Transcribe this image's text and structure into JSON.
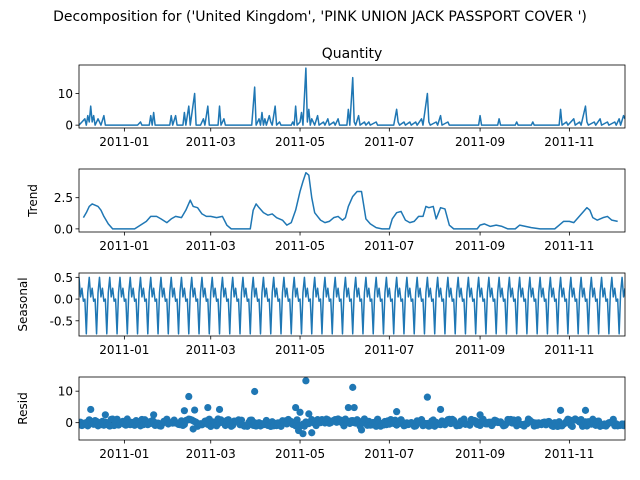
{
  "figure": {
    "suptitle": "Decomposition for ('United Kingdom', 'PINK UNION JACK  PASSPORT COVER ')"
  },
  "x_ticks": [
    "2011-01",
    "2011-03",
    "2011-05",
    "2011-07",
    "2011-09",
    "2011-11"
  ],
  "colors": {
    "series": "#1f77b4",
    "axis": "#000000",
    "background": "#ffffff"
  },
  "chart_data": [
    {
      "type": "line",
      "title": "Quantity",
      "ylabel": "",
      "x_range": [
        "2010-12-01",
        "2011-12-09"
      ],
      "ylim": [
        -0.9,
        19
      ],
      "yticks": [
        0,
        10
      ],
      "points": [
        [
          "2010-12-01",
          0
        ],
        [
          "2010-12-03",
          1
        ],
        [
          "2010-12-05",
          2
        ],
        [
          "2010-12-06",
          0
        ],
        [
          "2010-12-07",
          3
        ],
        [
          "2010-12-08",
          1
        ],
        [
          "2010-12-09",
          6
        ],
        [
          "2010-12-10",
          1
        ],
        [
          "2010-12-11",
          3
        ],
        [
          "2010-12-12",
          0
        ],
        [
          "2010-12-14",
          2
        ],
        [
          "2010-12-15",
          1
        ],
        [
          "2010-12-16",
          0
        ],
        [
          "2010-12-18",
          3
        ],
        [
          "2010-12-19",
          0
        ],
        [
          "2010-12-21",
          0
        ],
        [
          "2011-01-10",
          0
        ],
        [
          "2011-01-12",
          1
        ],
        [
          "2011-01-13",
          0
        ],
        [
          "2011-01-18",
          0
        ],
        [
          "2011-01-19",
          3
        ],
        [
          "2011-01-20",
          0
        ],
        [
          "2011-01-21",
          4
        ],
        [
          "2011-01-22",
          0
        ],
        [
          "2011-02-01",
          0
        ],
        [
          "2011-02-02",
          3
        ],
        [
          "2011-02-03",
          0
        ],
        [
          "2011-02-05",
          3
        ],
        [
          "2011-02-06",
          0
        ],
        [
          "2011-02-10",
          0
        ],
        [
          "2011-02-11",
          4
        ],
        [
          "2011-02-12",
          0
        ],
        [
          "2011-02-14",
          6
        ],
        [
          "2011-02-15",
          0
        ],
        [
          "2011-02-18",
          10
        ],
        [
          "2011-02-19",
          0
        ],
        [
          "2011-02-22",
          0
        ],
        [
          "2011-02-24",
          2
        ],
        [
          "2011-02-25",
          0
        ],
        [
          "2011-02-27",
          6
        ],
        [
          "2011-02-28",
          0
        ],
        [
          "2011-03-06",
          0
        ],
        [
          "2011-03-07",
          6
        ],
        [
          "2011-03-08",
          0
        ],
        [
          "2011-03-10",
          2
        ],
        [
          "2011-03-11",
          0
        ],
        [
          "2011-03-29",
          0
        ],
        [
          "2011-03-31",
          12
        ],
        [
          "2011-04-01",
          0
        ],
        [
          "2011-04-03",
          2
        ],
        [
          "2011-04-04",
          0
        ],
        [
          "2011-04-05",
          4
        ],
        [
          "2011-04-06",
          0
        ],
        [
          "2011-04-07",
          2
        ],
        [
          "2011-04-08",
          0
        ],
        [
          "2011-04-10",
          3
        ],
        [
          "2011-04-11",
          1
        ],
        [
          "2011-04-12",
          0
        ],
        [
          "2011-04-14",
          6
        ],
        [
          "2011-04-15",
          0
        ],
        [
          "2011-04-17",
          1
        ],
        [
          "2011-04-18",
          0
        ],
        [
          "2011-04-25",
          0
        ],
        [
          "2011-04-26",
          1
        ],
        [
          "2011-04-27",
          0
        ],
        [
          "2011-04-28",
          6
        ],
        [
          "2011-04-29",
          0
        ],
        [
          "2011-05-01",
          1
        ],
        [
          "2011-05-02",
          4
        ],
        [
          "2011-05-03",
          0
        ],
        [
          "2011-05-05",
          18
        ],
        [
          "2011-05-06",
          1
        ],
        [
          "2011-05-07",
          5
        ],
        [
          "2011-05-08",
          0
        ],
        [
          "2011-05-09",
          2
        ],
        [
          "2011-05-10",
          1
        ],
        [
          "2011-05-11",
          0
        ],
        [
          "2011-05-13",
          3
        ],
        [
          "2011-05-14",
          0
        ],
        [
          "2011-05-17",
          1
        ],
        [
          "2011-05-18",
          0
        ],
        [
          "2011-05-20",
          2
        ],
        [
          "2011-05-21",
          0
        ],
        [
          "2011-05-24",
          1
        ],
        [
          "2011-05-25",
          0
        ],
        [
          "2011-05-27",
          2
        ],
        [
          "2011-05-28",
          0
        ],
        [
          "2011-06-02",
          0
        ],
        [
          "2011-06-03",
          5
        ],
        [
          "2011-06-04",
          0
        ],
        [
          "2011-06-06",
          15
        ],
        [
          "2011-06-07",
          1
        ],
        [
          "2011-06-08",
          0
        ],
        [
          "2011-06-10",
          3
        ],
        [
          "2011-06-11",
          0
        ],
        [
          "2011-06-14",
          1
        ],
        [
          "2011-06-15",
          0
        ],
        [
          "2011-06-17",
          1
        ],
        [
          "2011-06-18",
          0
        ],
        [
          "2011-06-22",
          1
        ],
        [
          "2011-06-23",
          0
        ],
        [
          "2011-07-04",
          0
        ],
        [
          "2011-07-06",
          5
        ],
        [
          "2011-07-07",
          1
        ],
        [
          "2011-07-08",
          0
        ],
        [
          "2011-07-11",
          1
        ],
        [
          "2011-07-12",
          0
        ],
        [
          "2011-07-15",
          1
        ],
        [
          "2011-07-16",
          0
        ],
        [
          "2011-07-19",
          1
        ],
        [
          "2011-07-20",
          0
        ],
        [
          "2011-07-23",
          2
        ],
        [
          "2011-07-24",
          0
        ],
        [
          "2011-07-27",
          10
        ],
        [
          "2011-07-28",
          1
        ],
        [
          "2011-07-29",
          0
        ],
        [
          "2011-08-02",
          1
        ],
        [
          "2011-08-03",
          0
        ],
        [
          "2011-08-05",
          3
        ],
        [
          "2011-08-06",
          0
        ],
        [
          "2011-08-10",
          1
        ],
        [
          "2011-08-11",
          0
        ],
        [
          "2011-08-31",
          0
        ],
        [
          "2011-09-01",
          3
        ],
        [
          "2011-09-02",
          0
        ],
        [
          "2011-09-13",
          0
        ],
        [
          "2011-09-14",
          2
        ],
        [
          "2011-09-15",
          0
        ],
        [
          "2011-09-25",
          0
        ],
        [
          "2011-09-26",
          1
        ],
        [
          "2011-09-27",
          0
        ],
        [
          "2011-10-06",
          0
        ],
        [
          "2011-10-07",
          1
        ],
        [
          "2011-10-08",
          0
        ],
        [
          "2011-10-25",
          0
        ],
        [
          "2011-10-26",
          5
        ],
        [
          "2011-10-27",
          0
        ],
        [
          "2011-10-30",
          1
        ],
        [
          "2011-10-31",
          0
        ],
        [
          "2011-11-04",
          2
        ],
        [
          "2011-11-05",
          0
        ],
        [
          "2011-11-08",
          1
        ],
        [
          "2011-11-09",
          0
        ],
        [
          "2011-11-12",
          6
        ],
        [
          "2011-11-13",
          1
        ],
        [
          "2011-11-14",
          0
        ],
        [
          "2011-11-18",
          1
        ],
        [
          "2011-11-19",
          0
        ],
        [
          "2011-11-22",
          2
        ],
        [
          "2011-11-23",
          0
        ],
        [
          "2011-11-27",
          1
        ],
        [
          "2011-11-28",
          0
        ],
        [
          "2011-12-02",
          1
        ],
        [
          "2011-12-03",
          0
        ],
        [
          "2011-12-05",
          2
        ],
        [
          "2011-12-06",
          0
        ],
        [
          "2011-12-08",
          3
        ],
        [
          "2011-12-09",
          2
        ]
      ]
    },
    {
      "type": "line",
      "title": "",
      "ylabel": "Trend",
      "x_range": [
        "2010-12-01",
        "2011-12-09"
      ],
      "ylim": [
        -0.25,
        4.8
      ],
      "yticks": [
        0.0,
        2.5
      ],
      "points": [
        [
          "2010-12-04",
          0.9
        ],
        [
          "2010-12-06",
          1.3
        ],
        [
          "2010-12-08",
          1.8
        ],
        [
          "2010-12-10",
          2.0
        ],
        [
          "2010-12-12",
          1.9
        ],
        [
          "2010-12-14",
          1.8
        ],
        [
          "2010-12-16",
          1.5
        ],
        [
          "2010-12-18",
          1.0
        ],
        [
          "2010-12-21",
          0.4
        ],
        [
          "2010-12-24",
          0.0
        ],
        [
          "2011-01-08",
          0.0
        ],
        [
          "2011-01-12",
          0.3
        ],
        [
          "2011-01-16",
          0.6
        ],
        [
          "2011-01-19",
          1.0
        ],
        [
          "2011-01-23",
          1.0
        ],
        [
          "2011-01-26",
          0.8
        ],
        [
          "2011-01-30",
          0.5
        ],
        [
          "2011-02-02",
          0.8
        ],
        [
          "2011-02-05",
          1.0
        ],
        [
          "2011-02-09",
          0.9
        ],
        [
          "2011-02-12",
          1.5
        ],
        [
          "2011-02-15",
          2.3
        ],
        [
          "2011-02-17",
          1.8
        ],
        [
          "2011-02-20",
          1.7
        ],
        [
          "2011-02-23",
          1.2
        ],
        [
          "2011-02-26",
          1.0
        ],
        [
          "2011-03-01",
          1.0
        ],
        [
          "2011-03-05",
          0.9
        ],
        [
          "2011-03-09",
          1.0
        ],
        [
          "2011-03-12",
          0.3
        ],
        [
          "2011-03-15",
          0.0
        ],
        [
          "2011-03-28",
          0.0
        ],
        [
          "2011-03-30",
          1.5
        ],
        [
          "2011-04-01",
          2.0
        ],
        [
          "2011-04-03",
          1.7
        ],
        [
          "2011-04-06",
          1.3
        ],
        [
          "2011-04-09",
          1.1
        ],
        [
          "2011-04-12",
          1.2
        ],
        [
          "2011-04-15",
          0.9
        ],
        [
          "2011-04-19",
          0.7
        ],
        [
          "2011-04-22",
          0.3
        ],
        [
          "2011-04-25",
          0.5
        ],
        [
          "2011-04-28",
          1.5
        ],
        [
          "2011-05-01",
          3.0
        ],
        [
          "2011-05-03",
          3.8
        ],
        [
          "2011-05-05",
          4.5
        ],
        [
          "2011-05-07",
          4.3
        ],
        [
          "2011-05-09",
          2.5
        ],
        [
          "2011-05-11",
          1.3
        ],
        [
          "2011-05-13",
          1.0
        ],
        [
          "2011-05-15",
          0.7
        ],
        [
          "2011-05-18",
          0.5
        ],
        [
          "2011-05-21",
          0.6
        ],
        [
          "2011-05-24",
          0.9
        ],
        [
          "2011-05-27",
          1.0
        ],
        [
          "2011-05-30",
          0.7
        ],
        [
          "2011-06-01",
          0.9
        ],
        [
          "2011-06-03",
          1.8
        ],
        [
          "2011-06-06",
          2.6
        ],
        [
          "2011-06-09",
          3.0
        ],
        [
          "2011-06-12",
          3.0
        ],
        [
          "2011-06-15",
          0.8
        ],
        [
          "2011-06-18",
          0.4
        ],
        [
          "2011-06-22",
          0.1
        ],
        [
          "2011-06-26",
          0.0
        ],
        [
          "2011-07-01",
          0.0
        ],
        [
          "2011-07-03",
          0.8
        ],
        [
          "2011-07-06",
          1.3
        ],
        [
          "2011-07-09",
          1.4
        ],
        [
          "2011-07-12",
          0.7
        ],
        [
          "2011-07-15",
          0.5
        ],
        [
          "2011-07-18",
          0.6
        ],
        [
          "2011-07-21",
          1.0
        ],
        [
          "2011-07-24",
          1.0
        ],
        [
          "2011-07-26",
          1.8
        ],
        [
          "2011-07-28",
          1.7
        ],
        [
          "2011-07-31",
          1.8
        ],
        [
          "2011-08-02",
          0.8
        ],
        [
          "2011-08-05",
          1.7
        ],
        [
          "2011-08-08",
          1.6
        ],
        [
          "2011-08-11",
          0.3
        ],
        [
          "2011-08-14",
          0.0
        ],
        [
          "2011-08-30",
          0.0
        ],
        [
          "2011-09-01",
          0.3
        ],
        [
          "2011-09-04",
          0.4
        ],
        [
          "2011-09-08",
          0.2
        ],
        [
          "2011-09-12",
          0.3
        ],
        [
          "2011-09-16",
          0.2
        ],
        [
          "2011-09-20",
          0.0
        ],
        [
          "2011-09-25",
          0.0
        ],
        [
          "2011-09-28",
          0.3
        ],
        [
          "2011-10-02",
          0.2
        ],
        [
          "2011-10-06",
          0.1
        ],
        [
          "2011-10-12",
          0.0
        ],
        [
          "2011-10-22",
          0.0
        ],
        [
          "2011-10-25",
          0.3
        ],
        [
          "2011-10-28",
          0.6
        ],
        [
          "2011-11-01",
          0.6
        ],
        [
          "2011-11-04",
          0.5
        ],
        [
          "2011-11-07",
          0.9
        ],
        [
          "2011-11-10",
          1.3
        ],
        [
          "2011-11-13",
          1.7
        ],
        [
          "2011-11-15",
          1.5
        ],
        [
          "2011-11-17",
          0.9
        ],
        [
          "2011-11-20",
          0.7
        ],
        [
          "2011-11-24",
          0.9
        ],
        [
          "2011-11-27",
          1.0
        ],
        [
          "2011-11-30",
          0.7
        ],
        [
          "2011-12-04",
          0.6
        ]
      ]
    },
    {
      "type": "line",
      "title": "",
      "ylabel": "Seasonal",
      "x_range": [
        "2010-12-01",
        "2011-12-09"
      ],
      "ylim": [
        -0.85,
        0.6
      ],
      "yticks": [
        -0.5,
        0.0,
        0.5
      ],
      "period_days": 7,
      "pattern": [
        0.5,
        0.05,
        0.25,
        -0.05,
        0.0,
        -0.8,
        0.15
      ]
    },
    {
      "type": "scatter",
      "title": "",
      "ylabel": "Resid",
      "x_range": [
        "2010-12-01",
        "2011-12-09"
      ],
      "ylim": [
        -5.5,
        14.5
      ],
      "yticks": [
        0,
        10
      ],
      "outliers": [
        [
          "2010-12-09",
          4.2
        ],
        [
          "2010-12-19",
          2.5
        ],
        [
          "2011-01-21",
          2.5
        ],
        [
          "2011-02-11",
          3.8
        ],
        [
          "2011-02-14",
          8.3
        ],
        [
          "2011-02-18",
          4.0
        ],
        [
          "2011-02-27",
          4.8
        ],
        [
          "2011-03-07",
          4.2
        ],
        [
          "2011-03-31",
          9.9
        ],
        [
          "2011-04-28",
          4.8
        ],
        [
          "2011-05-01",
          3.3
        ],
        [
          "2011-05-05",
          13.3
        ],
        [
          "2011-05-07",
          2.8
        ],
        [
          "2011-06-03",
          4.8
        ],
        [
          "2011-06-06",
          11.2
        ],
        [
          "2011-06-07",
          4.8
        ],
        [
          "2011-07-06",
          3.5
        ],
        [
          "2011-07-27",
          8.1
        ],
        [
          "2011-08-05",
          4.2
        ],
        [
          "2011-09-01",
          2.5
        ],
        [
          "2011-10-26",
          3.9
        ],
        [
          "2011-11-12",
          3.9
        ],
        [
          "2011-05-03",
          -3.5
        ],
        [
          "2011-05-09",
          -3.2
        ],
        [
          "2011-04-30",
          -2.5
        ],
        [
          "2011-06-12",
          -2.3
        ],
        [
          "2011-02-17",
          -2.0
        ]
      ]
    }
  ]
}
